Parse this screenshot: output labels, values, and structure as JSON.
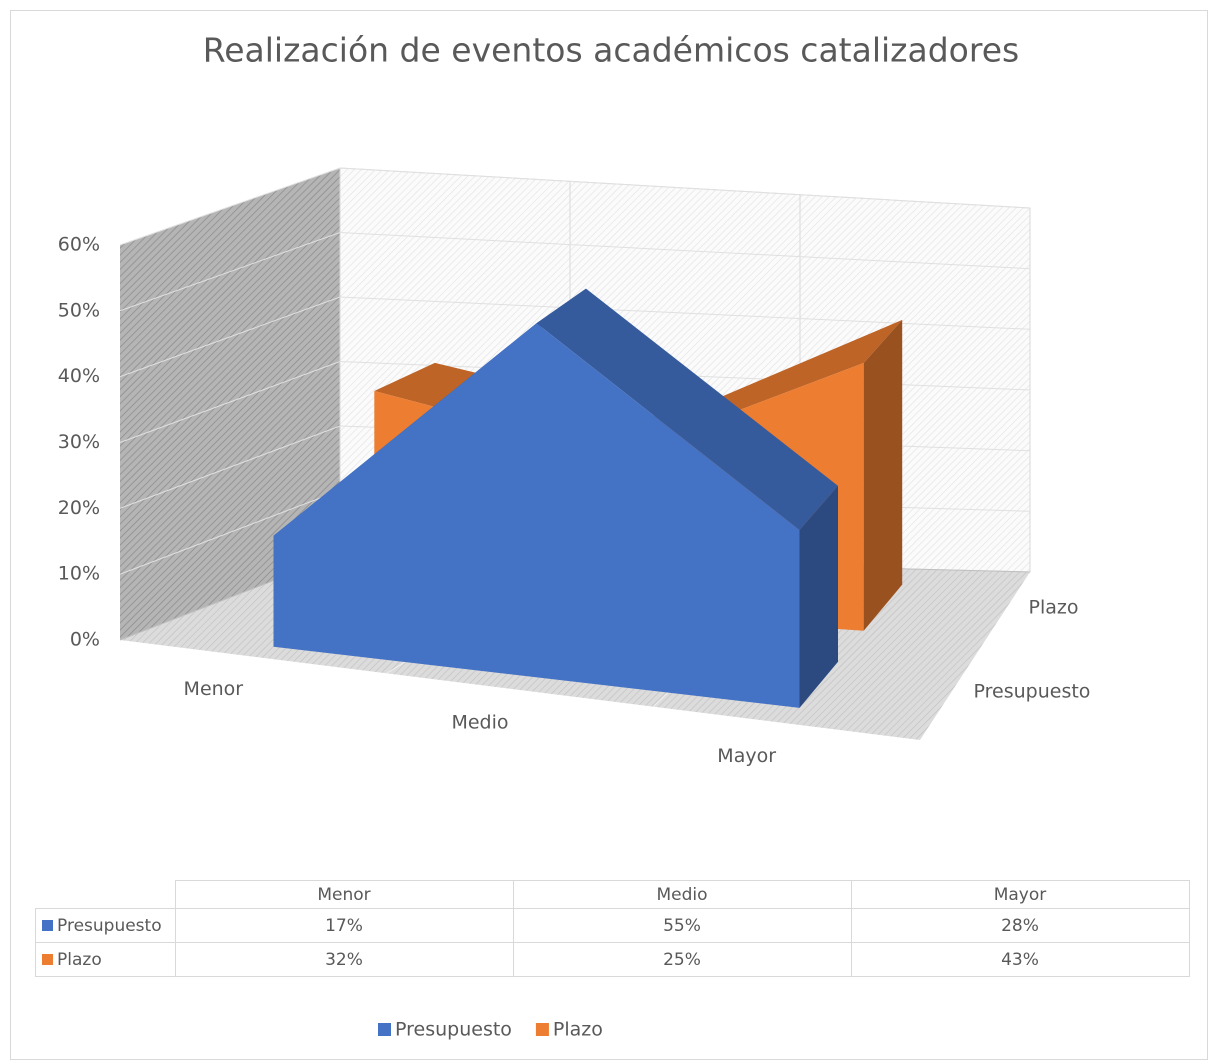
{
  "chart_data": {
    "type": "area3d",
    "title": "Realización de eventos académicos catalizadores",
    "categories": [
      "Menor",
      "Medio",
      "Mayor"
    ],
    "series": [
      {
        "name": "Presupuesto",
        "color": "#4472c4",
        "values": [
          17,
          55,
          28
        ],
        "value_labels": [
          "17%",
          "55%",
          "28%"
        ]
      },
      {
        "name": "Plazo",
        "color": "#ed7d31",
        "values": [
          32,
          25,
          43
        ],
        "value_labels": [
          "32%",
          "25%",
          "43%"
        ]
      }
    ],
    "ylim": [
      0,
      60
    ],
    "yticks": [
      {
        "value": 0,
        "label": "0%"
      },
      {
        "value": 10,
        "label": "10%"
      },
      {
        "value": 20,
        "label": "20%"
      },
      {
        "value": 30,
        "label": "30%"
      },
      {
        "value": 40,
        "label": "40%"
      },
      {
        "value": 50,
        "label": "50%"
      },
      {
        "value": 60,
        "label": "60%"
      }
    ],
    "grid": true,
    "data_table": true,
    "legend": "bottom"
  }
}
